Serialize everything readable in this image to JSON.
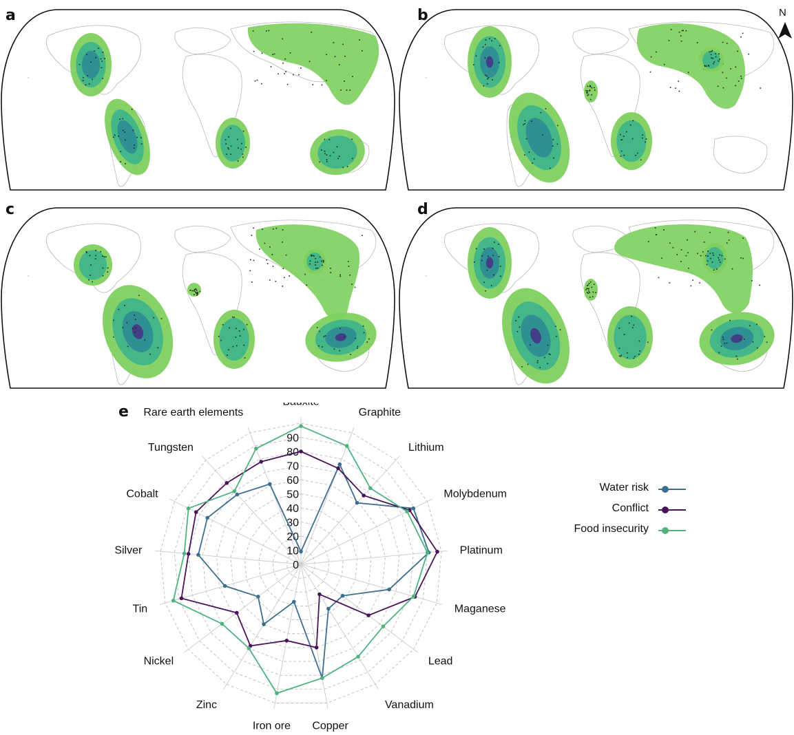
{
  "panels": {
    "a": "a",
    "b": "b",
    "c": "c",
    "d": "d",
    "e": "e"
  },
  "north_label": "N",
  "colors": {
    "water_risk": "#3c6e8f",
    "conflict": "#4a1359",
    "food_insecurity": "#4fb37f",
    "kde_outer": "#7fd05f",
    "kde_mid": "#3fb58a",
    "kde_inner": "#2f8c93",
    "kde_core": "#433b87"
  },
  "chart_data": {
    "type": "radar",
    "categories": [
      "Bauxite",
      "Graphite",
      "Lithium",
      "Molybdenum",
      "Platinum",
      "Maganese",
      "Lead",
      "Vanadium",
      "Copper",
      "Iron ore",
      "Zinc",
      "Nickel",
      "Tin",
      "Silver",
      "Cobalt",
      "Tungsten",
      "Rare earth elements"
    ],
    "radial_ticks": [
      "0",
      "10",
      "20",
      "30",
      "40",
      "50",
      "60",
      "70",
      "80",
      "90"
    ],
    "rlim": [
      0,
      100
    ],
    "series": [
      {
        "name": "Water risk",
        "color": "#3c6e8f",
        "values": [
          9,
          76,
          59,
          89,
          91,
          65,
          37,
          37,
          82,
          27,
          50,
          38,
          56,
          73,
          74,
          67,
          61
        ]
      },
      {
        "name": "Conflict",
        "color": "#4a1359",
        "values": [
          80,
          73,
          66,
          86,
          97,
          84,
          60,
          25,
          60,
          55,
          68,
          57,
          88,
          80,
          83,
          78,
          78
        ]
      },
      {
        "name": "Food insecurity",
        "color": "#4fb37f",
        "values": [
          98,
          90,
          73,
          84,
          90,
          83,
          73,
          77,
          82,
          93,
          70,
          70,
          94,
          83,
          89,
          70,
          88
        ]
      }
    ],
    "legend_position": "right"
  }
}
